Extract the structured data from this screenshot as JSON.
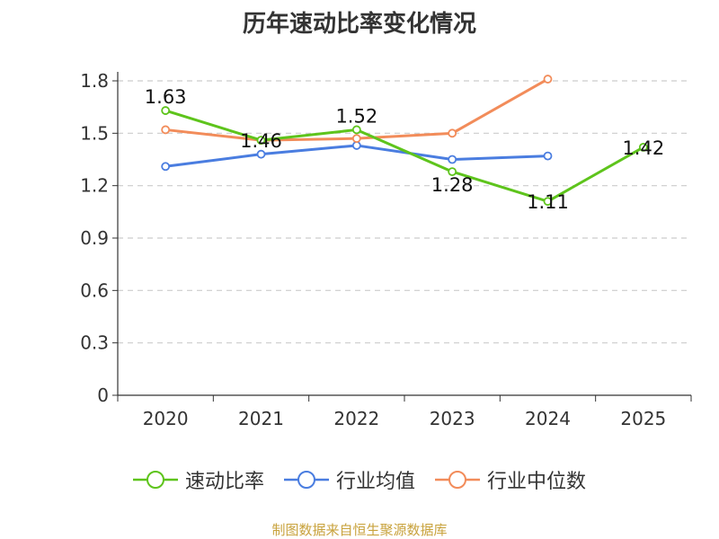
{
  "title": "历年速动比率变化情况",
  "source": "制图数据来自恒生聚源数据库",
  "chart_data": {
    "type": "line",
    "title": "历年速动比率变化情况",
    "categories": [
      "2020",
      "2021",
      "2022",
      "2023",
      "2024",
      "2025"
    ],
    "ylim": [
      0,
      1.8
    ],
    "yticks": [
      "0",
      "0.3",
      "0.6",
      "0.9",
      "1.2",
      "1.5",
      "1.8"
    ],
    "grid": true,
    "legend_position": "bottom",
    "series": [
      {
        "name": "速动比率",
        "color": "#5ec41c",
        "values": [
          1.63,
          1.46,
          1.52,
          1.28,
          1.11,
          1.42
        ],
        "labels": [
          "1.63",
          "1.46",
          "1.52",
          "1.28",
          "1.11",
          "1.42"
        ]
      },
      {
        "name": "行业均值",
        "color": "#4a7de0",
        "values": [
          1.31,
          1.38,
          1.43,
          1.35,
          1.37,
          null
        ]
      },
      {
        "name": "行业中位数",
        "color": "#f28c5a",
        "values": [
          1.52,
          1.46,
          1.47,
          1.5,
          1.81,
          null
        ]
      }
    ]
  }
}
